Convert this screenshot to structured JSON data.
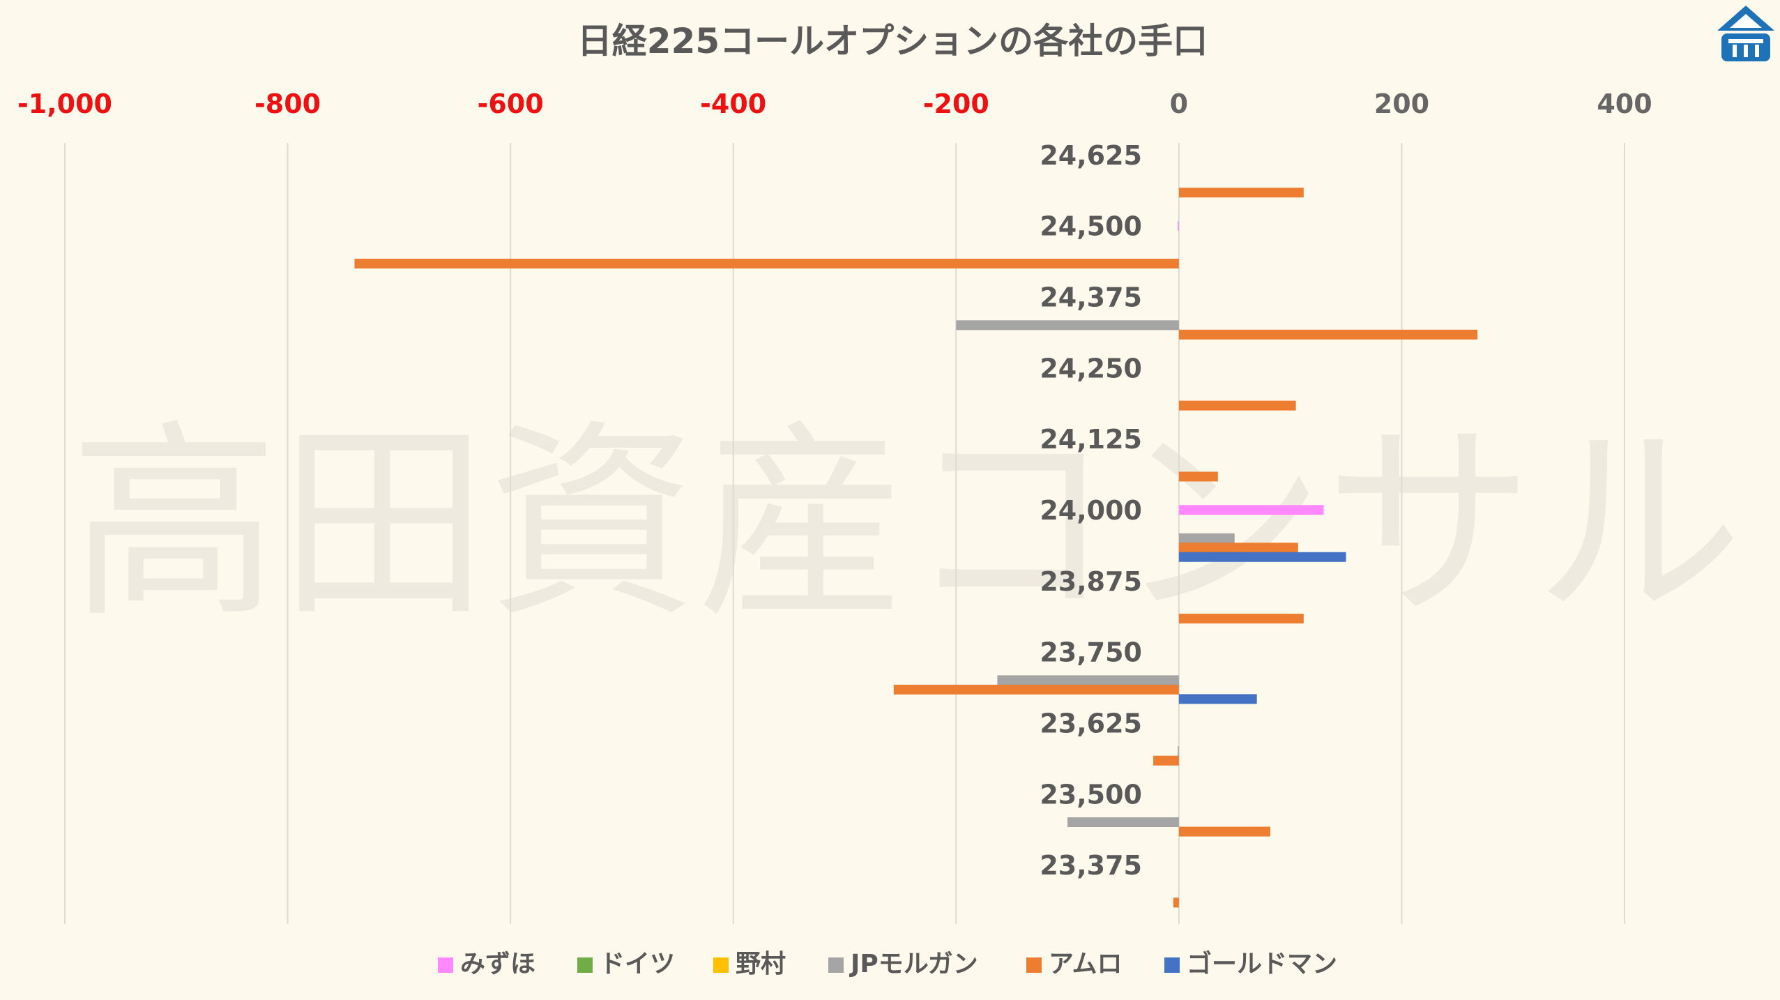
{
  "watermark": "高田資産コンサル",
  "colors": {
    "background": "#fef9ed",
    "negative_tick": "#ee1111",
    "positive_tick": "#666666",
    "grid": "#dcdcd2",
    "logo": "#1e73b8"
  },
  "chart_data": {
    "type": "bar",
    "orientation": "horizontal",
    "title": "日経225コールオプションの各社の手口",
    "xlabel": "",
    "ylabel": "",
    "xlim": [
      -1000,
      400
    ],
    "x_ticks": [
      -1000,
      -800,
      -600,
      -400,
      -200,
      0,
      200,
      400
    ],
    "x_tick_labels": [
      "-1,000",
      "-800",
      "-600",
      "-400",
      "-200",
      "0",
      "200",
      "400"
    ],
    "x_axis_position": "top",
    "grid": true,
    "legend_position": "bottom",
    "categories": [
      "24,625",
      "24,500",
      "24,375",
      "24,250",
      "24,125",
      "24,000",
      "23,875",
      "23,750",
      "23,625",
      "23,500",
      "23,375"
    ],
    "series": [
      {
        "name": "みずほ",
        "color": "#ff88ff",
        "values": [
          0,
          -1,
          0,
          0,
          0,
          130,
          0,
          0,
          0,
          0,
          0
        ]
      },
      {
        "name": "ドイツ",
        "color": "#70ad47",
        "values": [
          0,
          0,
          0,
          0,
          0,
          0,
          0,
          0,
          0,
          0,
          0
        ]
      },
      {
        "name": "野村",
        "color": "#ffc000",
        "values": [
          0,
          0,
          0,
          0,
          0,
          0,
          0,
          0,
          0,
          0,
          0
        ]
      },
      {
        "name": "JPモルガン",
        "color": "#a5a5a5",
        "values": [
          0,
          0,
          -200,
          0,
          0,
          50,
          0,
          -163,
          -1,
          -100,
          0
        ]
      },
      {
        "name": "アムロ",
        "color": "#ed7d31",
        "values": [
          112,
          -740,
          268,
          105,
          35,
          107,
          112,
          -256,
          -23,
          82,
          -5
        ]
      },
      {
        "name": "ゴールドマン",
        "color": "#4472c4",
        "values": [
          0,
          0,
          0,
          0,
          0,
          150,
          0,
          70,
          0,
          0,
          0
        ]
      }
    ]
  }
}
